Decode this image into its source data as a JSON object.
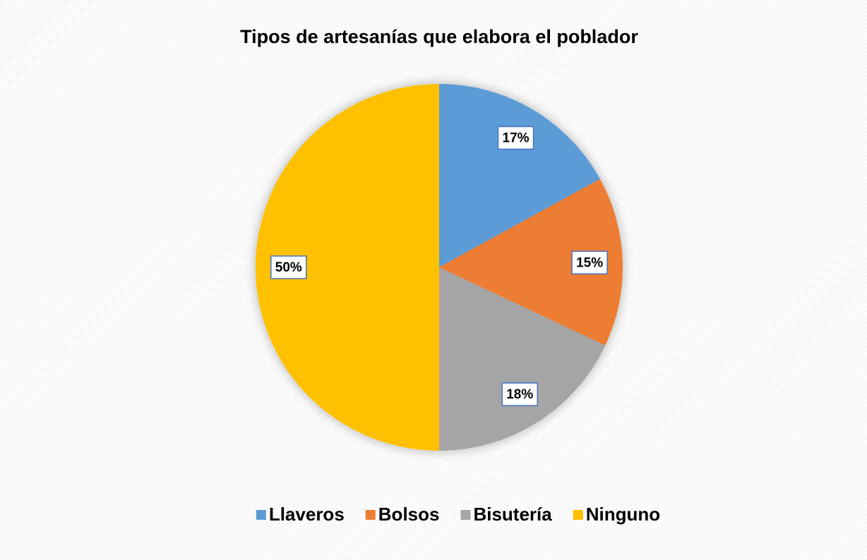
{
  "chart_data": {
    "type": "pie",
    "title": "Tipos de artesanías que elabora el poblador",
    "categories": [
      "Llaveros",
      "Bolsos",
      "Bisutería",
      "Ninguno"
    ],
    "values": [
      17,
      15,
      18,
      50
    ],
    "value_labels": [
      "17%",
      "15%",
      "18%",
      "50%"
    ],
    "colors": [
      "#5b9bd5",
      "#ed7d31",
      "#a5a5a5",
      "#ffc000"
    ],
    "legend": "bottom"
  }
}
